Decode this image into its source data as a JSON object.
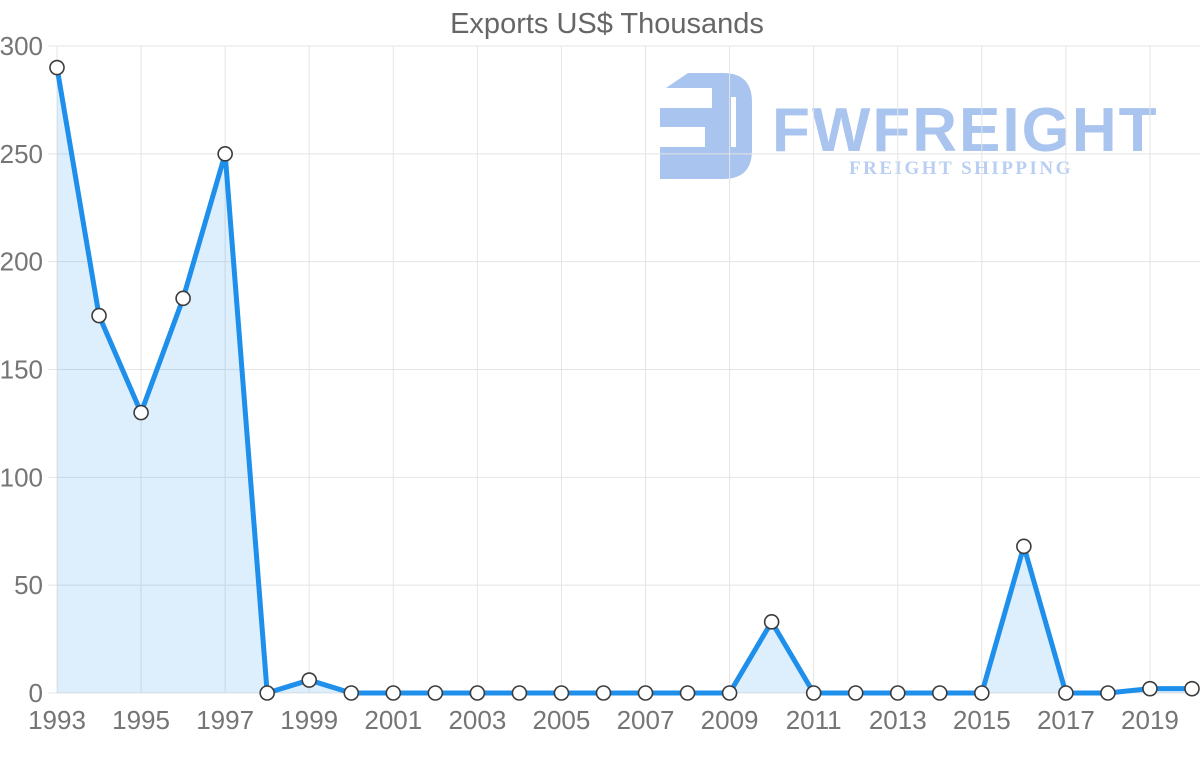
{
  "title": "Exports US$ Thousands",
  "logo": {
    "brand": "FWFREIGHT",
    "tagline": "FREIGHT SHIPPING",
    "color": "#a9c4ee",
    "tagline_color": "#b8cef2"
  },
  "colors": {
    "line": "#1e8fea",
    "fill": "rgba(30,143,234,0.15)",
    "grid": "#e4e4e4",
    "tick_label": "#757575",
    "title": "#666666",
    "marker_fill": "#ffffff",
    "marker_stroke": "#3b3b3b"
  },
  "chart_data": {
    "type": "area",
    "title": "Exports US$ Thousands",
    "xlabel": "",
    "ylabel": "",
    "x": [
      1993,
      1994,
      1995,
      1996,
      1997,
      1998,
      1999,
      2000,
      2001,
      2002,
      2003,
      2004,
      2005,
      2006,
      2007,
      2008,
      2009,
      2010,
      2011,
      2012,
      2013,
      2014,
      2015,
      2016,
      2017,
      2018,
      2019,
      2020
    ],
    "values": [
      290,
      175,
      130,
      183,
      250,
      0,
      6,
      0,
      0,
      0,
      0,
      0,
      0,
      0,
      0,
      0,
      0,
      33,
      0,
      0,
      0,
      0,
      0,
      68,
      0,
      0,
      2,
      2
    ],
    "ylim": [
      0,
      300
    ],
    "y_ticks": [
      0,
      50,
      100,
      150,
      200,
      250,
      300
    ],
    "x_ticks": [
      1993,
      1995,
      1997,
      1999,
      2001,
      2003,
      2005,
      2007,
      2009,
      2011,
      2013,
      2015,
      2017,
      2019
    ],
    "grid": true,
    "legend": "none",
    "markers": true
  }
}
